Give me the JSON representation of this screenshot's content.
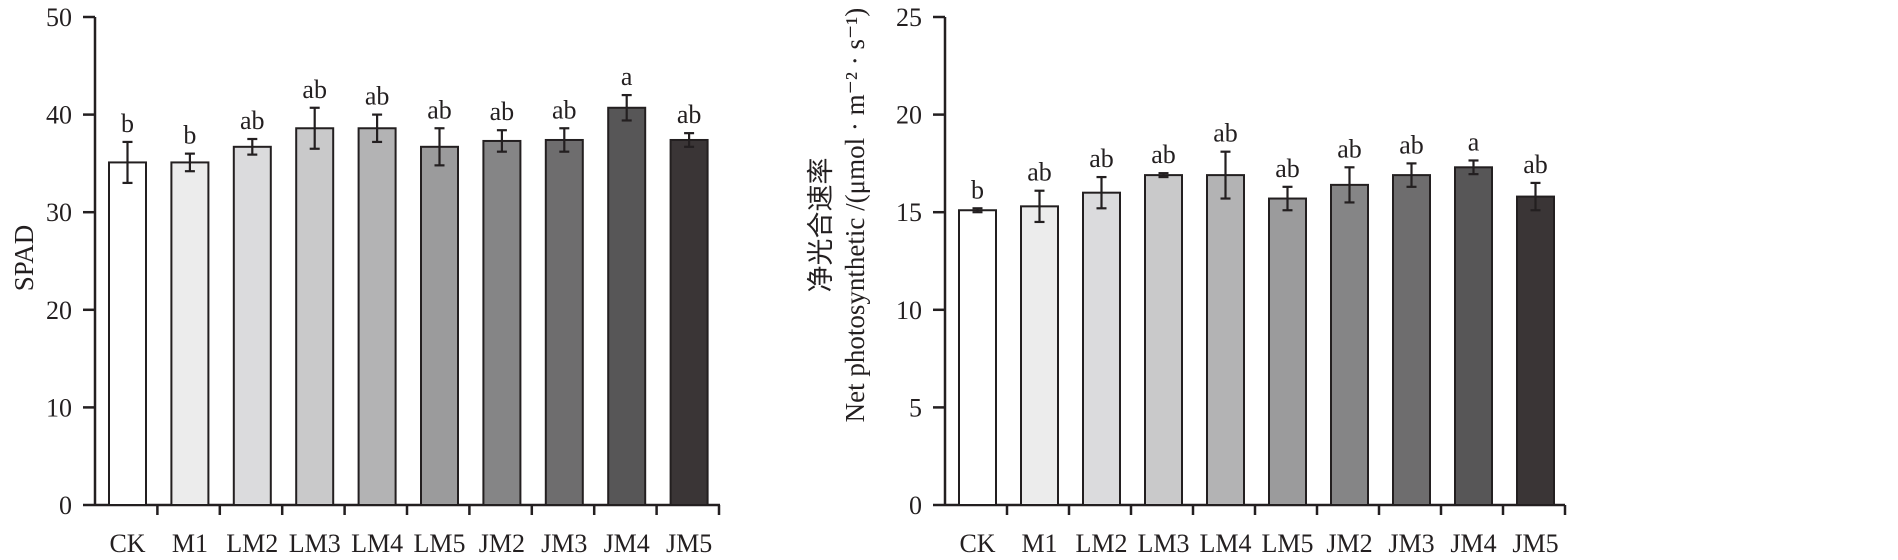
{
  "chart_data": [
    {
      "type": "bar",
      "ylabel": "SPAD",
      "ylabel_lines": [],
      "ylim": [
        0,
        50
      ],
      "yticks": [
        0,
        10,
        20,
        30,
        40,
        50
      ],
      "categories": [
        "CK",
        "M1",
        "LM2",
        "LM3",
        "LM4",
        "LM5",
        "JM2",
        "JM3",
        "JM4",
        "JM5"
      ],
      "values": [
        35.1,
        35.1,
        36.7,
        38.6,
        38.6,
        36.7,
        37.3,
        37.4,
        40.7,
        37.4
      ],
      "errors": [
        2.1,
        0.9,
        0.8,
        2.1,
        1.4,
        1.9,
        1.1,
        1.2,
        1.3,
        0.7
      ],
      "significance": [
        "b",
        "b",
        "ab",
        "ab",
        "ab",
        "ab",
        "ab",
        "ab",
        "a",
        "ab"
      ],
      "bar_colors": [
        "#ffffff",
        "#ececec",
        "#dbdbdd",
        "#c9c9ca",
        "#b3b3b4",
        "#9b9b9c",
        "#858586",
        "#6e6d6e",
        "#575657",
        "#3a3536"
      ],
      "grid": false,
      "legend": "none"
    },
    {
      "type": "bar",
      "ylabel": "",
      "ylabel_lines": [
        "净光合速率",
        "Net photosynthetic /(μmol · m⁻² · s⁻¹)"
      ],
      "ylim": [
        0,
        25
      ],
      "yticks": [
        0,
        5,
        10,
        15,
        20,
        25
      ],
      "categories": [
        "CK",
        "M1",
        "LM2",
        "LM3",
        "LM4",
        "LM5",
        "JM2",
        "JM3",
        "JM4",
        "JM5"
      ],
      "values": [
        15.1,
        15.3,
        16.0,
        16.9,
        16.9,
        15.7,
        16.4,
        16.9,
        17.3,
        15.8
      ],
      "errors": [
        0.1,
        0.8,
        0.8,
        0.1,
        1.2,
        0.6,
        0.9,
        0.6,
        0.35,
        0.7
      ],
      "significance": [
        "b",
        "ab",
        "ab",
        "ab",
        "ab",
        "ab",
        "ab",
        "ab",
        "a",
        "ab"
      ],
      "bar_colors": [
        "#ffffff",
        "#ececec",
        "#dbdbdd",
        "#c9c9ca",
        "#b3b3b4",
        "#9b9b9c",
        "#858586",
        "#6e6d6e",
        "#575657",
        "#3a3536"
      ],
      "grid": false,
      "legend": "none"
    }
  ]
}
